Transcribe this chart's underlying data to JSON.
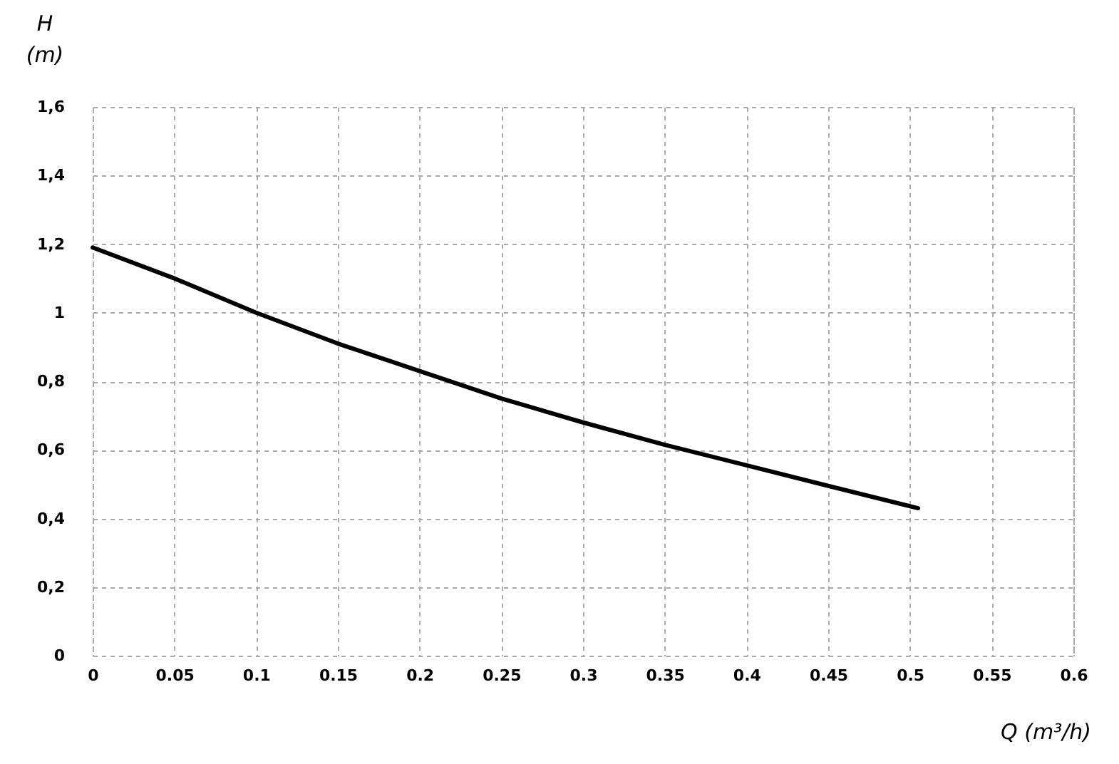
{
  "chart_data": {
    "type": "line",
    "xlabel": "Q (m³/h)",
    "ylabel": "H (m)",
    "x": [
      0,
      0.05,
      0.1,
      0.15,
      0.2,
      0.25,
      0.3,
      0.35,
      0.4,
      0.45,
      0.505
    ],
    "series": [
      {
        "color": "#000000",
        "values": [
          1.19,
          1.1,
          1.0,
          0.91,
          0.83,
          0.75,
          0.68,
          0.615,
          0.555,
          0.495,
          0.43
        ]
      }
    ],
    "xlim": [
      0,
      0.6
    ],
    "xticks": [
      0,
      0.05,
      0.1,
      0.15,
      0.2,
      0.25,
      0.3,
      0.35,
      0.4,
      0.45,
      0.5,
      0.55,
      0.6
    ],
    "ylim": [
      0,
      1.6
    ],
    "yticks": [
      0,
      {
        "value": 0.2,
        "label": "0,2"
      },
      {
        "value": 0.4,
        "label": "0,4"
      },
      {
        "value": 0.6,
        "label": "0,6"
      },
      {
        "value": 0.8,
        "label": "0,8"
      },
      1,
      {
        "value": 1.2,
        "label": "1,2"
      },
      {
        "value": 1.4,
        "label": "1,4"
      },
      {
        "value": 1.6,
        "label": "1,6"
      }
    ],
    "grid": true,
    "legend": false
  }
}
